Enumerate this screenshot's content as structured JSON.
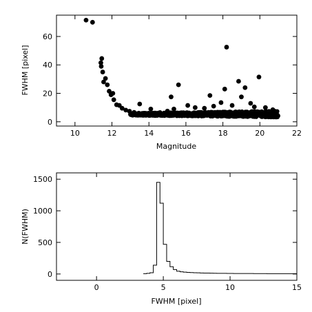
{
  "chart_data": [
    {
      "type": "scatter",
      "title": "",
      "xlabel": "Magnitude",
      "ylabel": "FWHM [pixel]",
      "xlim": [
        9,
        22
      ],
      "ylim": [
        -3,
        75
      ],
      "x_ticks": [
        10,
        12,
        14,
        16,
        18,
        20,
        22
      ],
      "y_ticks": [
        0,
        20,
        40,
        60
      ],
      "grid": false,
      "points": [
        [
          10.6,
          71.5
        ],
        [
          10.95,
          70.0
        ],
        [
          11.45,
          44.5
        ],
        [
          11.4,
          41.5
        ],
        [
          11.42,
          39.0
        ],
        [
          11.5,
          35.0
        ],
        [
          11.55,
          28.0
        ],
        [
          11.65,
          30.5
        ],
        [
          11.75,
          26.0
        ],
        [
          11.85,
          21.5
        ],
        [
          11.95,
          19.0
        ],
        [
          12.05,
          20.0
        ],
        [
          12.1,
          15.5
        ],
        [
          12.25,
          12.0
        ],
        [
          12.4,
          11.5
        ],
        [
          12.55,
          9.5
        ],
        [
          12.75,
          8.2
        ],
        [
          12.95,
          7.4
        ],
        [
          13.2,
          6.6
        ],
        [
          13.45,
          6.1
        ],
        [
          13.75,
          5.8
        ],
        [
          14.05,
          5.6
        ],
        [
          13.5,
          12.5
        ],
        [
          14.1,
          9.0
        ],
        [
          14.6,
          6.5
        ],
        [
          15.0,
          7.5
        ],
        [
          15.2,
          17.5
        ],
        [
          15.35,
          9.0
        ],
        [
          15.6,
          26.0
        ],
        [
          16.1,
          11.5
        ],
        [
          16.5,
          10.0
        ],
        [
          17.0,
          9.5
        ],
        [
          17.3,
          18.5
        ],
        [
          17.5,
          11.0
        ],
        [
          17.9,
          13.5
        ],
        [
          18.1,
          23.0
        ],
        [
          18.2,
          52.5
        ],
        [
          18.5,
          11.5
        ],
        [
          18.85,
          28.5
        ],
        [
          19.0,
          17.5
        ],
        [
          19.2,
          24.0
        ],
        [
          19.5,
          13.0
        ],
        [
          19.7,
          10.5
        ],
        [
          19.95,
          31.5
        ],
        [
          20.3,
          10.0
        ],
        [
          20.7,
          8.5
        ]
      ],
      "dense_band": {
        "x_range": [
          13.0,
          21.0
        ],
        "y_center": 5.2,
        "y_spread_min": 3.5,
        "y_spread_max": 8.5
      }
    },
    {
      "type": "histogram",
      "title": "",
      "xlabel": "FWHM [pixel]",
      "ylabel": "N(FWHM)",
      "xlim": [
        -3,
        15
      ],
      "ylim": [
        -100,
        1600
      ],
      "x_ticks": [
        0,
        5,
        10,
        15
      ],
      "y_ticks": [
        0,
        500,
        1000,
        1500
      ],
      "grid": false,
      "bin_width": 0.25,
      "bin_start": 3.5,
      "counts": [
        5,
        10,
        20,
        140,
        1450,
        1120,
        470,
        200,
        115,
        70,
        45,
        35,
        30,
        25,
        22,
        20,
        18,
        16,
        15,
        14,
        13,
        12,
        11,
        10,
        10,
        9,
        9,
        8,
        8,
        8,
        7,
        7,
        7,
        6,
        6,
        6,
        6,
        5,
        5,
        5,
        5,
        5,
        5,
        5,
        5,
        5
      ]
    }
  ]
}
